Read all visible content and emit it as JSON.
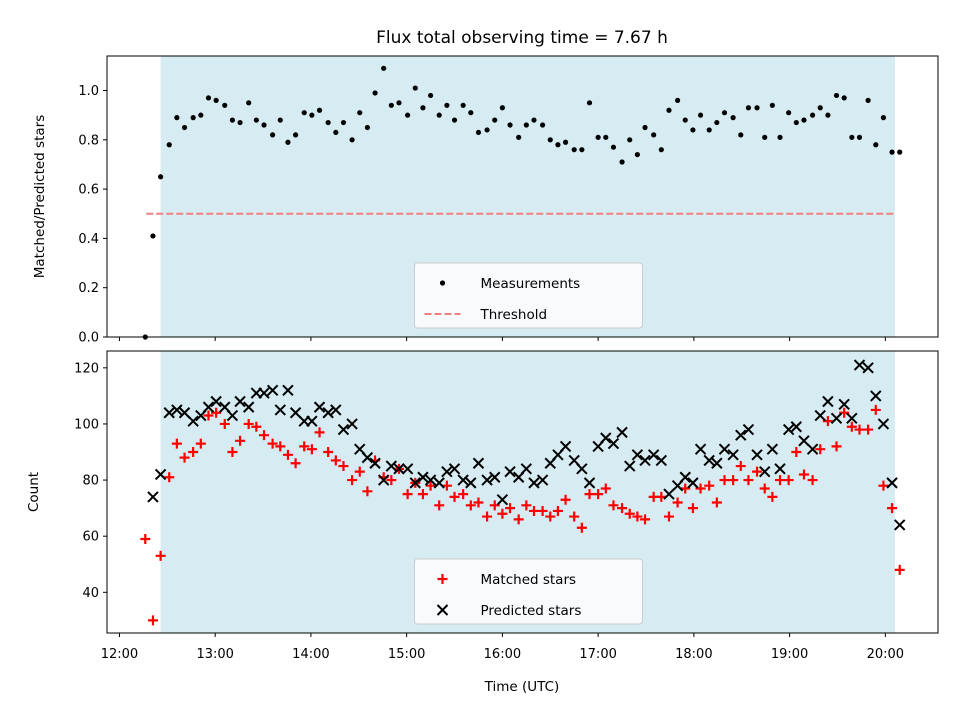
{
  "chart_data": {
    "title": "Flux total observing time = 7.67 h",
    "xlabel": "Time (UTC)",
    "x_unit": "hours UTC",
    "xlim": [
      11.87,
      20.55
    ],
    "xticks": [
      12,
      13,
      14,
      15,
      16,
      17,
      18,
      19,
      20
    ],
    "xtick_labels": [
      "12:00",
      "13:00",
      "14:00",
      "15:00",
      "16:00",
      "17:00",
      "18:00",
      "19:00",
      "20:00"
    ],
    "observing_window": {
      "start": 12.43,
      "end": 20.1,
      "color": "#add8e6"
    },
    "panels": [
      {
        "type": "scatter",
        "ylabel": "Matched/Predicted stars",
        "ylim": [
          0,
          1.14
        ],
        "yticks": [
          0.0,
          0.2,
          0.4,
          0.6,
          0.8,
          1.0
        ],
        "ytick_labels": [
          "0.0",
          "0.2",
          "0.4",
          "0.6",
          "0.8",
          "1.0"
        ],
        "legend": {
          "position": "lower center"
        },
        "threshold": {
          "name": "Threshold",
          "value": 0.5,
          "x_start": 12.28,
          "x_end": 20.1,
          "color": "#f08080"
        },
        "series": [
          {
            "name": "Measurements",
            "marker": "dot",
            "color": "#000000",
            "x": [
              12.27,
              12.35,
              12.43,
              12.52,
              12.6,
              12.68,
              12.77,
              12.85,
              12.93,
              13.01,
              13.1,
              13.18,
              13.26,
              13.35,
              13.43,
              13.51,
              13.6,
              13.68,
              13.76,
              13.84,
              13.93,
              14.01,
              14.09,
              14.18,
              14.26,
              14.34,
              14.43,
              14.51,
              14.59,
              14.67,
              14.76,
              14.84,
              14.92,
              15.01,
              15.09,
              15.17,
              15.25,
              15.34,
              15.42,
              15.5,
              15.59,
              15.67,
              15.75,
              15.84,
              15.92,
              16.0,
              16.08,
              16.17,
              16.25,
              16.33,
              16.42,
              16.5,
              16.58,
              16.66,
              16.75,
              16.83,
              16.91,
              17.0,
              17.08,
              17.16,
              17.25,
              17.33,
              17.41,
              17.49,
              17.58,
              17.66,
              17.74,
              17.83,
              17.91,
              17.99,
              18.07,
              18.16,
              18.24,
              18.32,
              18.41,
              18.49,
              18.57,
              18.66,
              18.74,
              18.82,
              18.9,
              18.99,
              19.07,
              19.15,
              19.24,
              19.32,
              19.4,
              19.49,
              19.57,
              19.65,
              19.73,
              19.82,
              19.9,
              19.98,
              20.07,
              20.15
            ],
            "y": [
              0.0,
              0.41,
              0.65,
              0.78,
              0.89,
              0.85,
              0.89,
              0.9,
              0.97,
              0.96,
              0.94,
              0.88,
              0.87,
              0.95,
              0.88,
              0.86,
              0.82,
              0.88,
              0.79,
              0.82,
              0.91,
              0.9,
              0.92,
              0.87,
              0.83,
              0.87,
              0.8,
              0.91,
              0.85,
              0.99,
              1.09,
              0.94,
              0.95,
              0.9,
              1.01,
              0.93,
              0.98,
              0.9,
              0.94,
              0.88,
              0.94,
              0.91,
              0.83,
              0.84,
              0.88,
              0.93,
              0.86,
              0.81,
              0.86,
              0.88,
              0.86,
              0.8,
              0.78,
              0.79,
              0.76,
              0.76,
              0.95,
              0.81,
              0.81,
              0.77,
              0.71,
              0.8,
              0.74,
              0.85,
              0.82,
              0.76,
              0.92,
              0.96,
              0.88,
              0.84,
              0.9,
              0.84,
              0.87,
              0.91,
              0.89,
              0.82,
              0.93,
              0.93,
              0.81,
              0.94,
              0.81,
              0.91,
              0.87,
              0.88,
              0.9,
              0.93,
              0.9,
              0.98,
              0.97,
              0.81,
              0.81,
              0.96,
              0.78,
              0.89,
              0.75,
              0.75
            ]
          }
        ]
      },
      {
        "type": "scatter",
        "ylabel": "Count",
        "ylim": [
          25.5,
          126
        ],
        "yticks": [
          40,
          60,
          80,
          100,
          120
        ],
        "ytick_labels": [
          "40",
          "60",
          "80",
          "100",
          "120"
        ],
        "legend": {
          "position": "lower center"
        },
        "series": [
          {
            "name": "Matched stars",
            "marker": "plus",
            "color": "#ff0000",
            "x": [
              12.27,
              12.35,
              12.43,
              12.52,
              12.6,
              12.68,
              12.77,
              12.85,
              12.93,
              13.01,
              13.1,
              13.18,
              13.26,
              13.35,
              13.43,
              13.51,
              13.6,
              13.68,
              13.76,
              13.84,
              13.93,
              14.01,
              14.09,
              14.18,
              14.26,
              14.34,
              14.43,
              14.51,
              14.59,
              14.67,
              14.76,
              14.84,
              14.92,
              15.01,
              15.09,
              15.17,
              15.25,
              15.34,
              15.42,
              15.5,
              15.59,
              15.67,
              15.75,
              15.84,
              15.92,
              16.0,
              16.08,
              16.17,
              16.25,
              16.33,
              16.42,
              16.5,
              16.58,
              16.66,
              16.75,
              16.83,
              16.91,
              17.0,
              17.08,
              17.16,
              17.25,
              17.33,
              17.41,
              17.49,
              17.58,
              17.66,
              17.74,
              17.83,
              17.91,
              17.99,
              18.07,
              18.16,
              18.24,
              18.32,
              18.41,
              18.49,
              18.57,
              18.66,
              18.74,
              18.82,
              18.9,
              18.99,
              19.07,
              19.15,
              19.24,
              19.32,
              19.4,
              19.49,
              19.57,
              19.65,
              19.73,
              19.82,
              19.9,
              19.98,
              20.07,
              20.15
            ],
            "y": [
              59,
              30,
              53,
              81,
              93,
              88,
              90,
              93,
              103,
              104,
              100,
              90,
              94,
              100,
              99,
              96,
              93,
              92,
              89,
              86,
              92,
              91,
              97,
              90,
              87,
              85,
              80,
              83,
              76,
              87,
              81,
              80,
              84,
              75,
              79,
              75,
              78,
              71,
              78,
              74,
              75,
              71,
              72,
              67,
              71,
              68,
              70,
              66,
              71,
              69,
              69,
              67,
              69,
              73,
              67,
              63,
              75,
              75,
              77,
              71,
              70,
              68,
              67,
              66,
              74,
              74,
              67,
              72,
              77,
              70,
              77,
              78,
              72,
              80,
              80,
              85,
              80,
              83,
              77,
              74,
              80,
              80,
              90,
              82,
              80,
              91,
              101,
              92,
              104,
              99,
              98,
              98,
              105,
              78,
              70,
              48
            ]
          },
          {
            "name": "Predicted stars",
            "marker": "x",
            "color": "#000000",
            "x": [
              12.35,
              12.43,
              12.52,
              12.6,
              12.68,
              12.77,
              12.85,
              12.93,
              13.01,
              13.1,
              13.18,
              13.26,
              13.35,
              13.43,
              13.51,
              13.6,
              13.68,
              13.76,
              13.84,
              13.93,
              14.01,
              14.09,
              14.18,
              14.26,
              14.34,
              14.43,
              14.51,
              14.59,
              14.67,
              14.76,
              14.84,
              14.92,
              15.01,
              15.09,
              15.17,
              15.25,
              15.34,
              15.42,
              15.5,
              15.59,
              15.67,
              15.75,
              15.84,
              15.92,
              16.0,
              16.08,
              16.17,
              16.25,
              16.33,
              16.42,
              16.5,
              16.58,
              16.66,
              16.75,
              16.83,
              16.91,
              17.0,
              17.08,
              17.16,
              17.25,
              17.33,
              17.41,
              17.49,
              17.58,
              17.66,
              17.74,
              17.83,
              17.91,
              17.99,
              18.07,
              18.16,
              18.24,
              18.32,
              18.41,
              18.49,
              18.57,
              18.66,
              18.74,
              18.82,
              18.9,
              18.99,
              19.07,
              19.15,
              19.24,
              19.32,
              19.4,
              19.49,
              19.57,
              19.65,
              19.73,
              19.82,
              19.9,
              19.98,
              20.07,
              20.15
            ],
            "y": [
              74,
              82,
              104,
              105,
              104,
              101,
              103,
              106,
              108,
              106,
              103,
              108,
              106,
              111,
              111,
              112,
              105,
              112,
              104,
              101,
              101,
              106,
              104,
              105,
              98,
              100,
              91,
              88,
              86,
              80,
              85,
              84,
              84,
              79,
              81,
              80,
              79,
              83,
              84,
              80,
              79,
              86,
              80,
              81,
              73,
              83,
              81,
              84,
              79,
              80,
              86,
              89,
              92,
              87,
              84,
              79,
              92,
              95,
              93,
              97,
              85,
              89,
              87,
              89,
              87,
              75,
              78,
              81,
              79,
              91,
              87,
              86,
              91,
              89,
              96,
              98,
              89,
              83,
              91,
              84,
              98,
              99,
              94,
              91,
              103,
              108,
              102,
              107,
              102,
              121,
              120,
              110,
              100,
              79,
              64
            ]
          }
        ]
      }
    ]
  }
}
